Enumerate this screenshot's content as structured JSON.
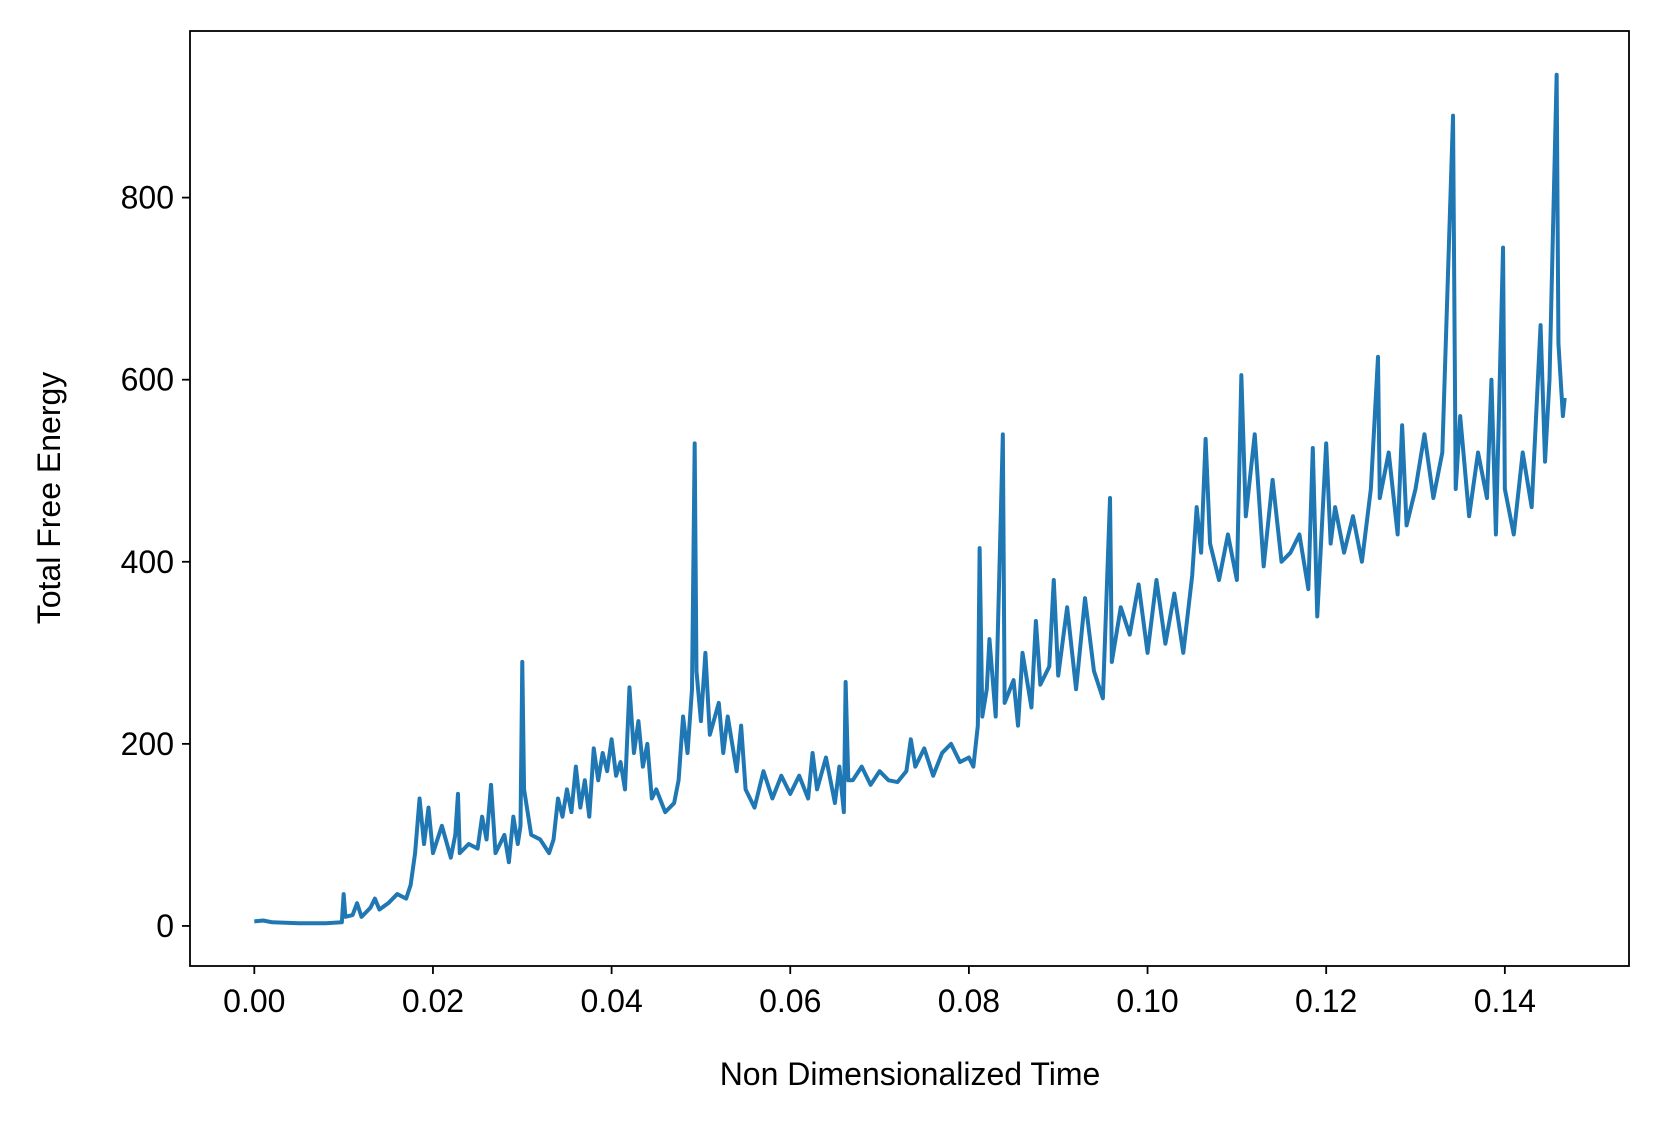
{
  "chart_data": {
    "type": "line",
    "xlabel": "Non Dimensionalized Time",
    "ylabel": "Total Free Energy",
    "xlim": [
      -0.0072,
      0.1539
    ],
    "ylim": [
      -44,
      983
    ],
    "xticks": [
      {
        "value": 0,
        "label": "0.00"
      },
      0.02,
      0.04,
      0.06,
      0.08,
      {
        "value": 0.1,
        "label": "0.10"
      },
      0.12,
      0.14
    ],
    "yticks": [
      0,
      200,
      400,
      600,
      800
    ],
    "grid": false,
    "series": [
      {
        "name": "Total Free Energy",
        "color": "#1f77b4",
        "x": [
          0.0,
          0.001,
          0.002,
          0.005,
          0.008,
          0.0098,
          0.01,
          0.0102,
          0.011,
          0.0115,
          0.012,
          0.013,
          0.0135,
          0.014,
          0.015,
          0.016,
          0.017,
          0.0175,
          0.018,
          0.0185,
          0.019,
          0.0195,
          0.02,
          0.021,
          0.022,
          0.0225,
          0.0228,
          0.023,
          0.024,
          0.025,
          0.0255,
          0.026,
          0.0265,
          0.027,
          0.028,
          0.0285,
          0.029,
          0.0295,
          0.0298,
          0.03,
          0.0302,
          0.031,
          0.032,
          0.033,
          0.0335,
          0.034,
          0.0345,
          0.035,
          0.0355,
          0.036,
          0.0365,
          0.037,
          0.0375,
          0.038,
          0.0385,
          0.039,
          0.0395,
          0.04,
          0.0405,
          0.041,
          0.0415,
          0.042,
          0.0425,
          0.043,
          0.0435,
          0.044,
          0.0445,
          0.045,
          0.046,
          0.047,
          0.0475,
          0.048,
          0.0485,
          0.049,
          0.0493,
          0.0495,
          0.05,
          0.0505,
          0.051,
          0.052,
          0.0525,
          0.053,
          0.054,
          0.0545,
          0.055,
          0.056,
          0.057,
          0.058,
          0.059,
          0.06,
          0.061,
          0.062,
          0.0625,
          0.063,
          0.064,
          0.065,
          0.0655,
          0.066,
          0.0662,
          0.0665,
          0.067,
          0.068,
          0.069,
          0.07,
          0.071,
          0.072,
          0.073,
          0.0735,
          0.074,
          0.075,
          0.076,
          0.077,
          0.078,
          0.079,
          0.08,
          0.0805,
          0.081,
          0.0812,
          0.0815,
          0.082,
          0.0823,
          0.083,
          0.0838,
          0.084,
          0.085,
          0.0855,
          0.086,
          0.087,
          0.0875,
          0.088,
          0.089,
          0.0895,
          0.09,
          0.091,
          0.092,
          0.093,
          0.094,
          0.095,
          0.0958,
          0.096,
          0.097,
          0.098,
          0.099,
          0.1,
          0.101,
          0.102,
          0.103,
          0.104,
          0.105,
          0.1055,
          0.106,
          0.1065,
          0.107,
          0.108,
          0.109,
          0.11,
          0.1105,
          0.111,
          0.112,
          0.113,
          0.114,
          0.115,
          0.116,
          0.117,
          0.118,
          0.1185,
          0.119,
          0.12,
          0.1205,
          0.121,
          0.122,
          0.123,
          0.124,
          0.125,
          0.1258,
          0.126,
          0.127,
          0.128,
          0.1285,
          0.129,
          0.13,
          0.131,
          0.132,
          0.133,
          0.1342,
          0.1345,
          0.135,
          0.136,
          0.137,
          0.138,
          0.1385,
          0.139,
          0.1398,
          0.14,
          0.141,
          0.142,
          0.143,
          0.144,
          0.1445,
          0.145,
          0.1458,
          0.146,
          0.1465,
          0.1467
        ],
        "values": [
          5,
          6,
          4,
          3,
          3,
          4,
          35,
          10,
          12,
          25,
          10,
          20,
          30,
          18,
          25,
          35,
          30,
          45,
          80,
          140,
          90,
          130,
          80,
          110,
          75,
          100,
          145,
          80,
          90,
          85,
          120,
          95,
          155,
          80,
          100,
          70,
          120,
          90,
          110,
          290,
          150,
          100,
          95,
          80,
          95,
          140,
          120,
          150,
          125,
          175,
          130,
          160,
          120,
          195,
          160,
          190,
          170,
          205,
          165,
          180,
          150,
          262,
          190,
          225,
          175,
          200,
          140,
          150,
          125,
          135,
          160,
          230,
          190,
          260,
          530,
          280,
          225,
          300,
          210,
          245,
          190,
          230,
          170,
          220,
          150,
          130,
          170,
          140,
          165,
          145,
          165,
          140,
          190,
          150,
          185,
          135,
          175,
          125,
          268,
          160,
          160,
          175,
          155,
          170,
          160,
          158,
          170,
          205,
          175,
          195,
          165,
          190,
          200,
          180,
          185,
          175,
          220,
          415,
          230,
          260,
          315,
          230,
          540,
          245,
          270,
          220,
          300,
          240,
          335,
          265,
          285,
          380,
          275,
          350,
          260,
          360,
          280,
          250,
          470,
          290,
          350,
          320,
          375,
          300,
          380,
          310,
          365,
          300,
          385,
          460,
          410,
          535,
          420,
          380,
          430,
          380,
          605,
          450,
          540,
          395,
          490,
          400,
          410,
          430,
          370,
          525,
          340,
          530,
          420,
          460,
          410,
          450,
          400,
          480,
          625,
          470,
          520,
          430,
          550,
          440,
          480,
          540,
          470,
          520,
          890,
          480,
          560,
          450,
          520,
          470,
          600,
          430,
          745,
          480,
          430,
          520,
          460,
          660,
          510,
          600,
          935,
          640,
          560,
          580
        ]
      }
    ]
  }
}
